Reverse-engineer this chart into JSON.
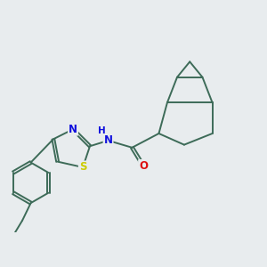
{
  "background_color": "#e8ecee",
  "bond_color": "#3d6b58",
  "atom_colors": {
    "N": "#1010dd",
    "O": "#dd1010",
    "S": "#cccc00",
    "H": "#1010dd",
    "C": "#3d6b58"
  },
  "line_width": 1.4,
  "font_size": 8.5
}
